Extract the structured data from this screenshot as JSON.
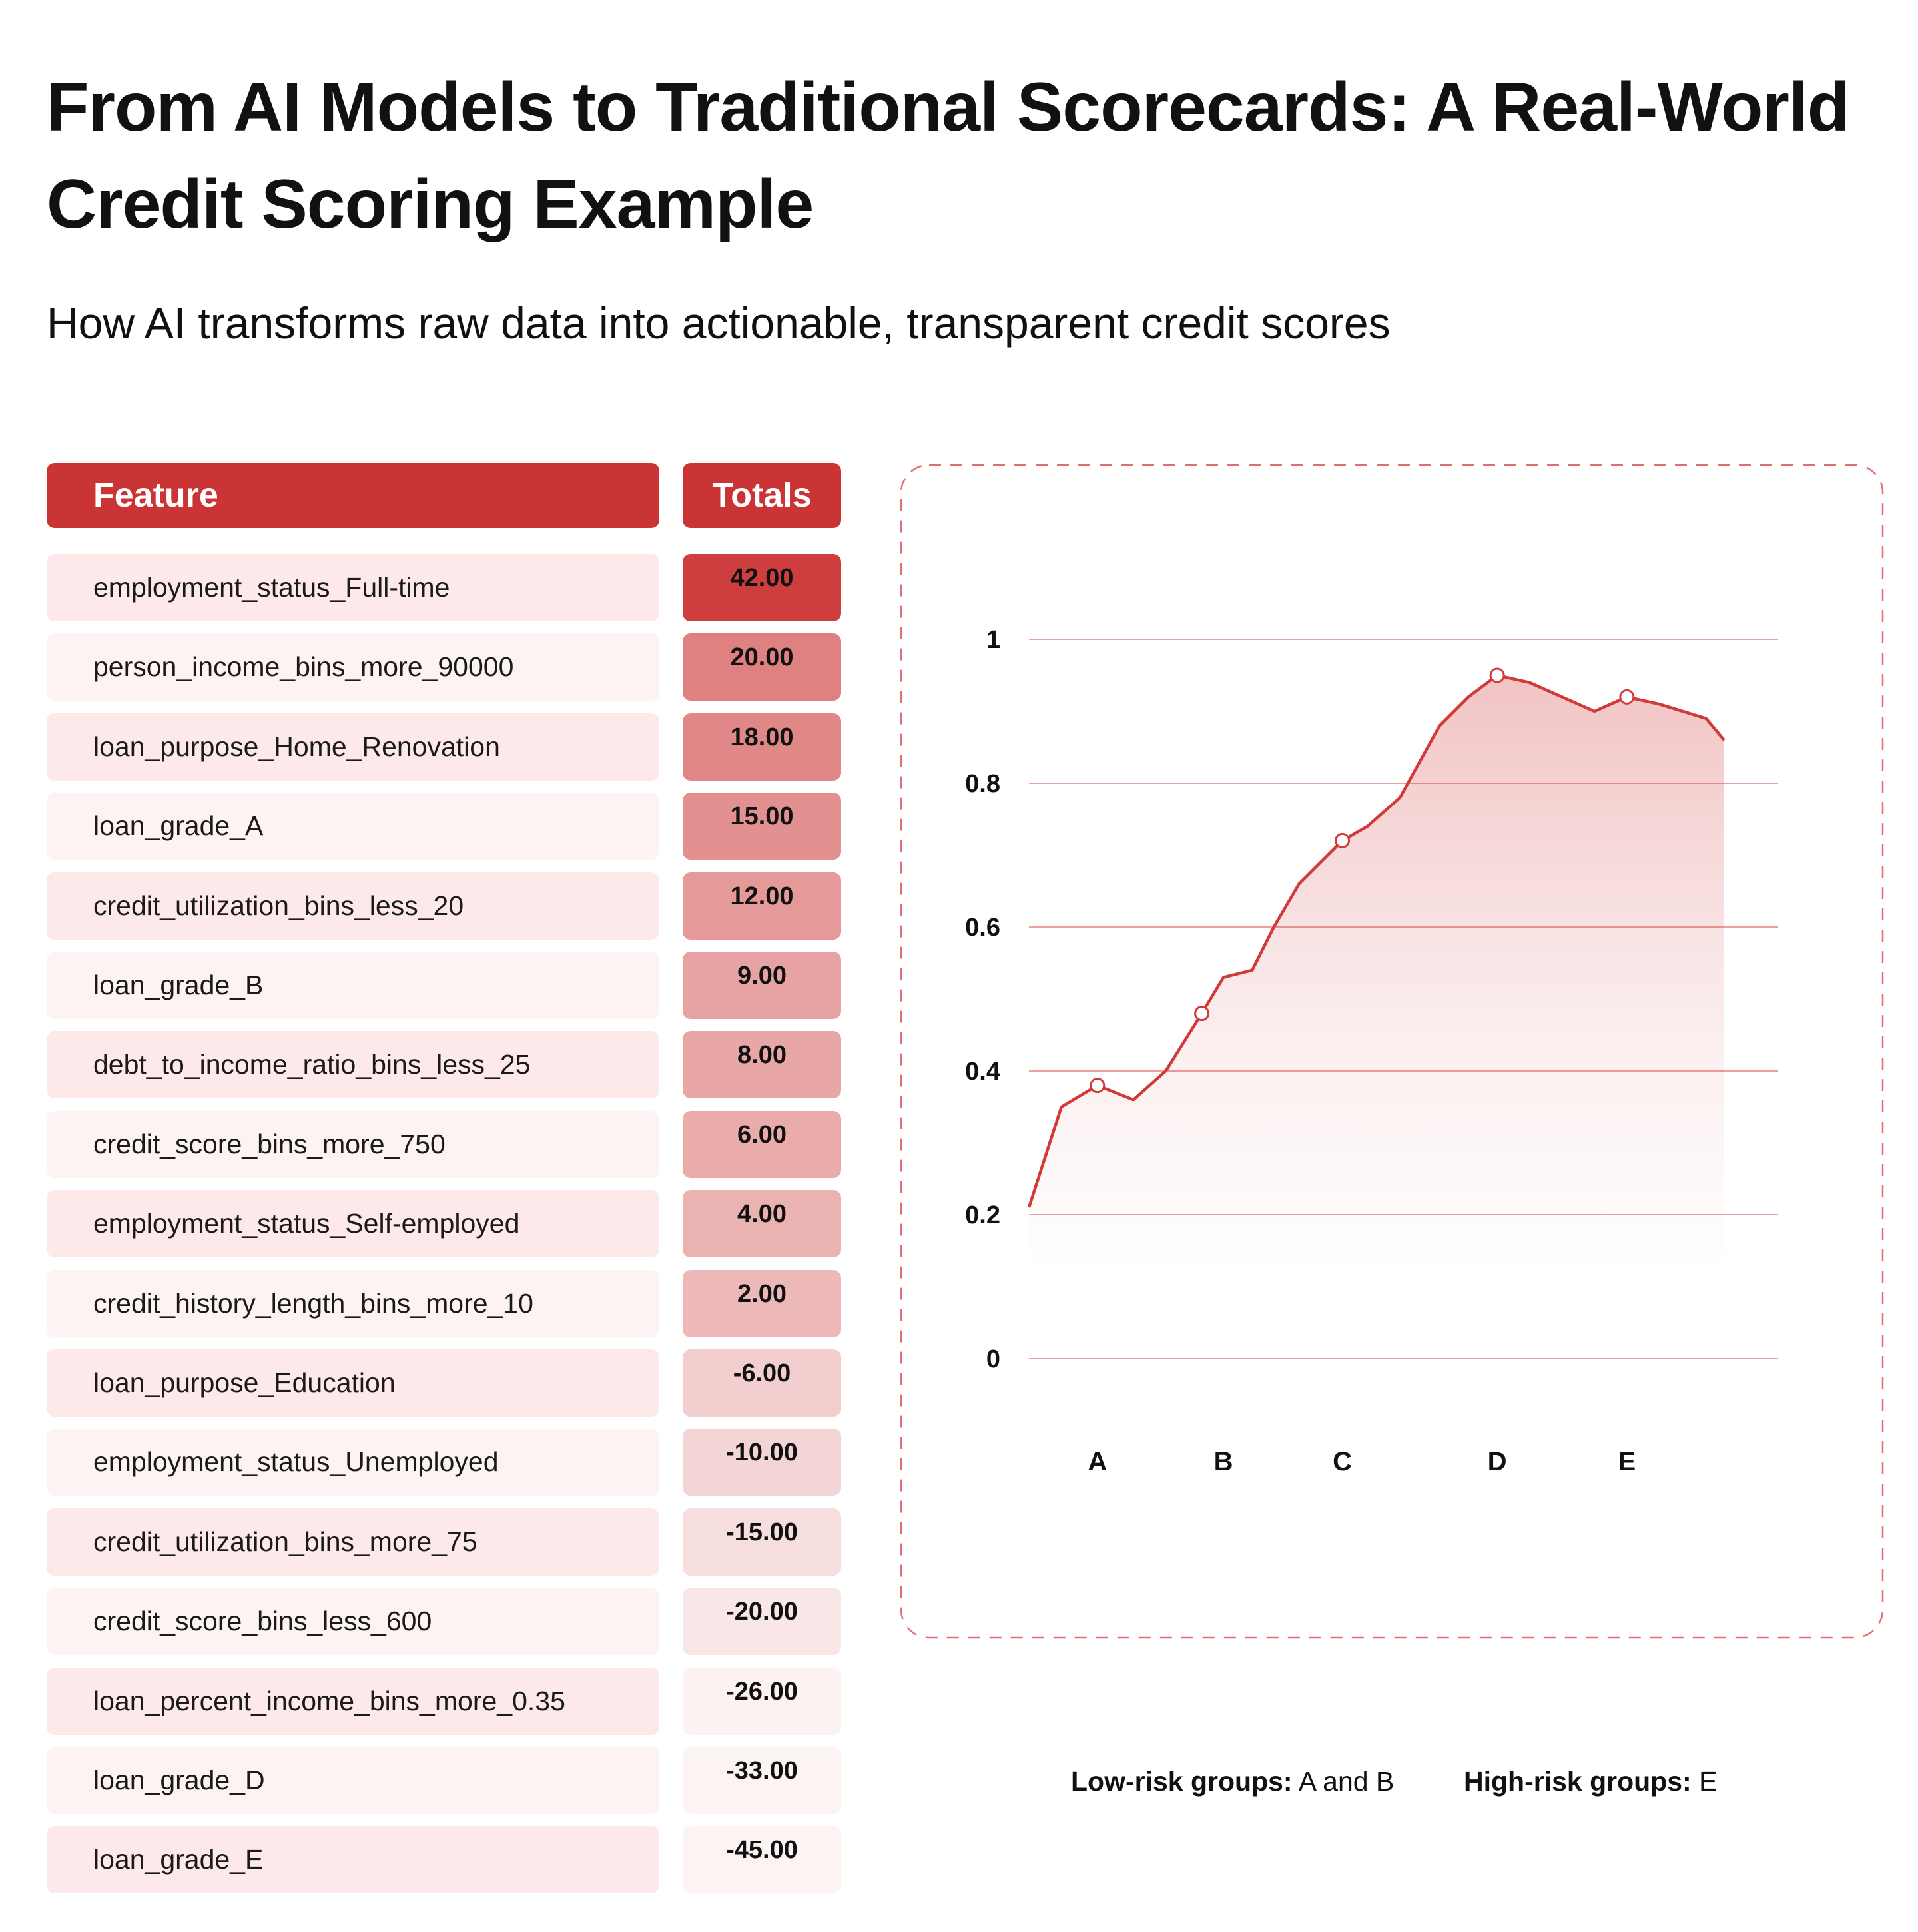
{
  "header": {
    "title": "From AI Models to Traditional Scorecards: A Real-World Credit Scoring Example",
    "subtitle": "How AI transforms raw data into actionable, transparent credit scores"
  },
  "table": {
    "columns": [
      "Feature",
      "Totals"
    ],
    "rows": [
      {
        "feature": "employment_status_Full-time",
        "total": "42.00",
        "value": 42
      },
      {
        "feature": "person_income_bins_more_90000",
        "total": "20.00",
        "value": 20
      },
      {
        "feature": "loan_purpose_Home_Renovation",
        "total": "18.00",
        "value": 18
      },
      {
        "feature": "loan_grade_A",
        "total": "15.00",
        "value": 15
      },
      {
        "feature": "credit_utilization_bins_less_20",
        "total": "12.00",
        "value": 12
      },
      {
        "feature": "loan_grade_B",
        "total": "9.00",
        "value": 9
      },
      {
        "feature": "debt_to_income_ratio_bins_less_25",
        "total": "8.00",
        "value": 8
      },
      {
        "feature": "credit_score_bins_more_750",
        "total": "6.00",
        "value": 6
      },
      {
        "feature": "employment_status_Self-employed",
        "total": "4.00",
        "value": 4
      },
      {
        "feature": "credit_history_length_bins_more_10",
        "total": "2.00",
        "value": 2
      },
      {
        "feature": "loan_purpose_Education",
        "total": "-6.00",
        "value": -6
      },
      {
        "feature": "employment_status_Unemployed",
        "total": "-10.00",
        "value": -10
      },
      {
        "feature": "credit_utilization_bins_more_75",
        "total": "-15.00",
        "value": -15
      },
      {
        "feature": "credit_score_bins_less_600",
        "total": "-20.00",
        "value": -20
      },
      {
        "feature": "loan_percent_income_bins_more_0.35",
        "total": "-26.00",
        "value": -26
      },
      {
        "feature": "loan_grade_D",
        "total": "-33.00",
        "value": -33
      },
      {
        "feature": "loan_grade_E",
        "total": "-45.00",
        "value": -45
      }
    ]
  },
  "colors": {
    "accent": "#cb3434",
    "line": "#d23a3a",
    "gridline": "#e88080",
    "row_fill_a": "#fde8ea",
    "row_fill_b": "#fdf3f3",
    "dashed_border": "#e07070"
  },
  "chart_data": {
    "type": "area",
    "title": "",
    "xlabel": "",
    "ylabel": "",
    "ylim": [
      0,
      1
    ],
    "yticks": [
      0,
      0.2,
      0.4,
      0.6,
      0.8,
      1
    ],
    "ytick_labels": [
      "0",
      "0.2",
      "0.4",
      "0.6",
      "0.8",
      "1"
    ],
    "categories": [
      "A",
      "B",
      "C",
      "D",
      "E"
    ],
    "category_positions": [
      1.9,
      5.4,
      8.7,
      13.0,
      16.6
    ],
    "grid": true,
    "series": [
      {
        "x": [
          0,
          0.9,
          1.9,
          2.9,
          3.8,
          4.8,
          5.4,
          6.2,
          6.8,
          7.5,
          8.7,
          9.4,
          10.3,
          11.4,
          12.2,
          13.0,
          13.9,
          14.8,
          15.7,
          16.6,
          17.5,
          18.8,
          19.3
        ],
        "y": [
          0.21,
          0.35,
          0.38,
          0.36,
          0.4,
          0.48,
          0.53,
          0.54,
          0.6,
          0.66,
          0.72,
          0.74,
          0.78,
          0.88,
          0.92,
          0.95,
          0.94,
          0.92,
          0.9,
          0.92,
          0.91,
          0.89,
          0.86
        ],
        "markers_at": [
          1.9,
          4.8,
          8.7,
          13.0,
          16.6
        ]
      }
    ]
  },
  "legend": {
    "low_label": "Low-risk groups:",
    "low_value": " A and B",
    "high_label": "High-risk groups:",
    "high_value": " E"
  }
}
